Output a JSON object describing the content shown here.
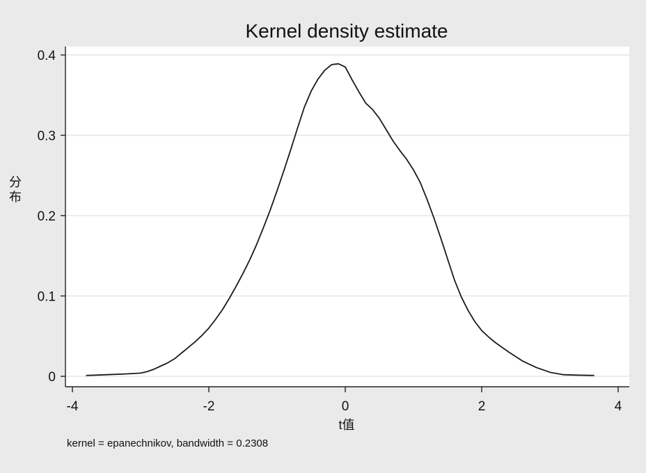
{
  "chart_data": {
    "type": "line",
    "title": "Kernel density estimate",
    "xlabel": "t值",
    "ylabel": "分布",
    "note": "kernel = epanechnikov, bandwidth = 0.2308",
    "xlim": [
      -4,
      4
    ],
    "ylim": [
      0,
      0.4
    ],
    "xticks": [
      -4,
      -2,
      0,
      2,
      4
    ],
    "xtick_labels": [
      "-4",
      "-2",
      "0",
      "2",
      "4"
    ],
    "yticks": [
      0,
      0.1,
      0.2,
      0.3,
      0.4
    ],
    "ytick_labels": [
      "0",
      "0.1",
      "0.2",
      "0.3",
      "0.4"
    ],
    "grid": true,
    "series": [
      {
        "color": "#1a1a1a",
        "x": [
          -3.8,
          -3.5,
          -3.2,
          -3.0,
          -2.9,
          -2.8,
          -2.7,
          -2.6,
          -2.5,
          -2.4,
          -2.3,
          -2.2,
          -2.1,
          -2.0,
          -1.9,
          -1.8,
          -1.7,
          -1.6,
          -1.5,
          -1.4,
          -1.3,
          -1.2,
          -1.1,
          -1.0,
          -0.9,
          -0.8,
          -0.7,
          -0.6,
          -0.5,
          -0.4,
          -0.3,
          -0.2,
          -0.1,
          0.0,
          0.1,
          0.2,
          0.3,
          0.4,
          0.5,
          0.6,
          0.7,
          0.8,
          0.9,
          1.0,
          1.1,
          1.2,
          1.3,
          1.4,
          1.5,
          1.6,
          1.7,
          1.8,
          1.9,
          2.0,
          2.1,
          2.2,
          2.4,
          2.6,
          2.8,
          3.0,
          3.2,
          3.4,
          3.65
        ],
        "y": [
          0.001,
          0.002,
          0.003,
          0.004,
          0.006,
          0.009,
          0.013,
          0.017,
          0.022,
          0.029,
          0.036,
          0.043,
          0.051,
          0.06,
          0.071,
          0.083,
          0.097,
          0.112,
          0.128,
          0.145,
          0.164,
          0.185,
          0.207,
          0.231,
          0.256,
          0.282,
          0.309,
          0.335,
          0.355,
          0.37,
          0.381,
          0.388,
          0.389,
          0.385,
          0.369,
          0.354,
          0.34,
          0.332,
          0.321,
          0.307,
          0.293,
          0.281,
          0.27,
          0.257,
          0.241,
          0.22,
          0.197,
          0.172,
          0.146,
          0.12,
          0.099,
          0.082,
          0.068,
          0.057,
          0.049,
          0.042,
          0.03,
          0.019,
          0.011,
          0.005,
          0.002,
          0.0015,
          0.001
        ]
      }
    ]
  }
}
